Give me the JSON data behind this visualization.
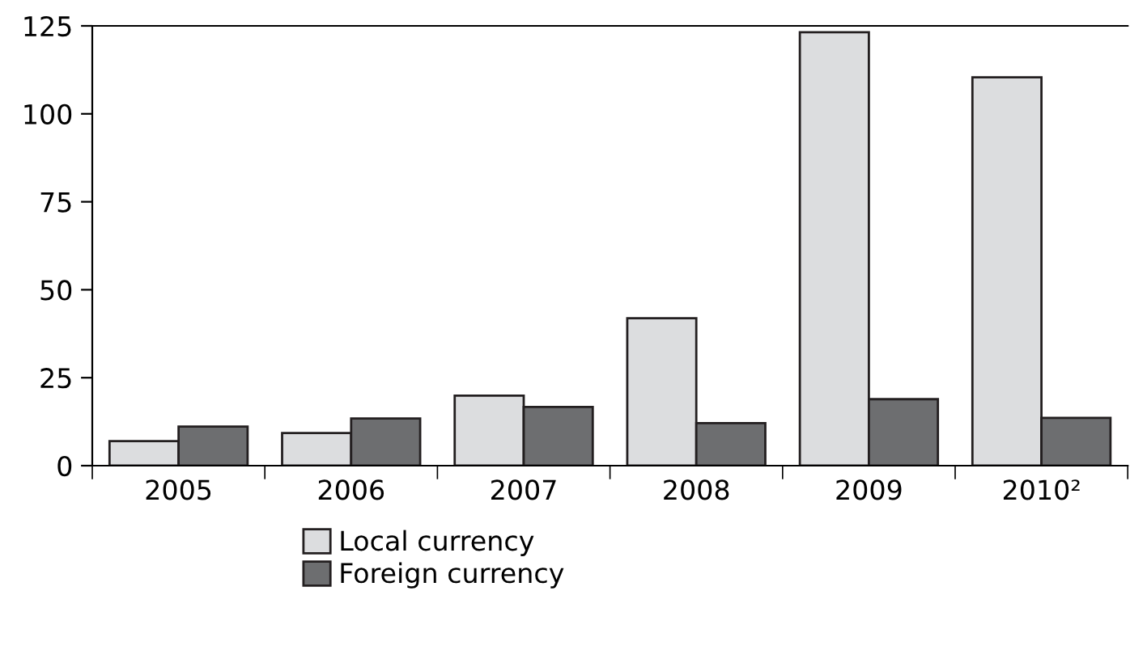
{
  "chart_data": {
    "type": "bar",
    "categories": [
      "2005",
      "2006",
      "2007",
      "2008",
      "2009",
      "2010²"
    ],
    "series": [
      {
        "name": "Local currency",
        "color": "#dcdddf",
        "values": [
          7.0,
          9.3,
          19.9,
          41.9,
          123.2,
          110.4
        ]
      },
      {
        "name": "Foreign currency",
        "color": "#6d6e70",
        "values": [
          11.1,
          13.4,
          16.7,
          12.1,
          18.9,
          13.6
        ]
      }
    ],
    "ylim": [
      0,
      125
    ],
    "yticks": [
      0,
      25,
      50,
      75,
      100,
      125
    ],
    "grid": false,
    "legend": "bottom"
  }
}
